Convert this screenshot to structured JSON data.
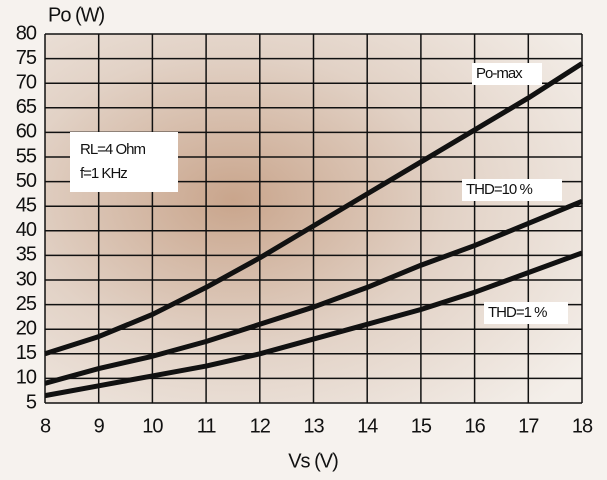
{
  "chart_data": {
    "type": "line",
    "y_label": "Po (W)",
    "x_label": "Vs (V)",
    "annotations": [
      "RL=4 Ohm",
      "f=1 KHz"
    ],
    "x": [
      8,
      9,
      10,
      11,
      12,
      13,
      14,
      15,
      16,
      17,
      18
    ],
    "series": [
      {
        "name": "Po-max",
        "color": "#111111",
        "values": [
          15,
          18.5,
          23,
          28.5,
          34.5,
          41,
          47.5,
          54,
          60.5,
          67,
          74
        ]
      },
      {
        "name": "THD=10 %",
        "color": "#111111",
        "values": [
          9,
          12,
          14.5,
          17.5,
          21,
          24.5,
          28.5,
          33,
          37,
          41.5,
          46
        ]
      },
      {
        "name": "THD=1 %",
        "color": "#111111",
        "values": [
          6.5,
          8.5,
          10.5,
          12.5,
          15,
          18,
          21,
          24,
          27.5,
          31.5,
          35.5
        ]
      }
    ],
    "xlim": [
      8,
      18
    ],
    "xticks": [
      8,
      9,
      10,
      11,
      12,
      13,
      14,
      15,
      16,
      17,
      18
    ],
    "ylim": [
      5,
      80
    ],
    "yticks": [
      5,
      10,
      15,
      20,
      25,
      30,
      35,
      40,
      45,
      50,
      55,
      60,
      65,
      70,
      75,
      80
    ],
    "grid": true
  }
}
